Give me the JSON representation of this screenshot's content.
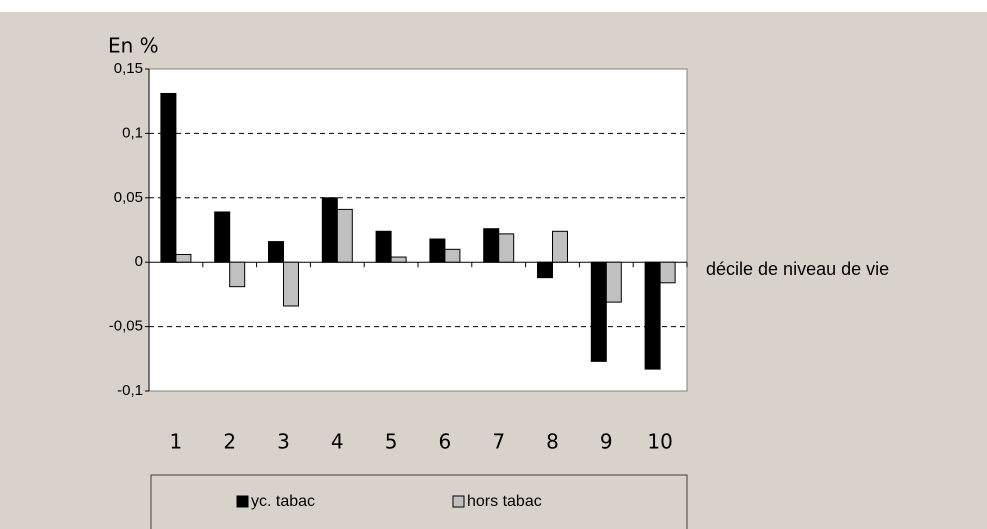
{
  "chart_data": {
    "type": "bar",
    "ylabel": "En %",
    "xlabel": "décile de niveau de vie",
    "categories": [
      "1",
      "2",
      "3",
      "4",
      "5",
      "6",
      "7",
      "8",
      "9",
      "10"
    ],
    "series": [
      {
        "name": "yc. tabac",
        "color": "#000000",
        "values": [
          0.131,
          0.039,
          0.016,
          0.05,
          0.024,
          0.018,
          0.026,
          -0.012,
          -0.077,
          -0.083
        ]
      },
      {
        "name": "hors tabac",
        "color": "#c0c0c0",
        "values": [
          0.006,
          -0.019,
          -0.034,
          0.041,
          0.004,
          0.01,
          0.022,
          0.024,
          -0.031,
          -0.016
        ]
      }
    ],
    "ylim": [
      -0.1,
      0.15
    ],
    "yticks": [
      {
        "value": -0.1,
        "label": "-0,1"
      },
      {
        "value": -0.05,
        "label": "-0,05"
      },
      0,
      {
        "value": 0.05,
        "label": "0,05"
      },
      {
        "value": 0.1,
        "label": "0,1"
      },
      {
        "value": 0.15,
        "label": "0,15"
      }
    ],
    "grid": true
  }
}
